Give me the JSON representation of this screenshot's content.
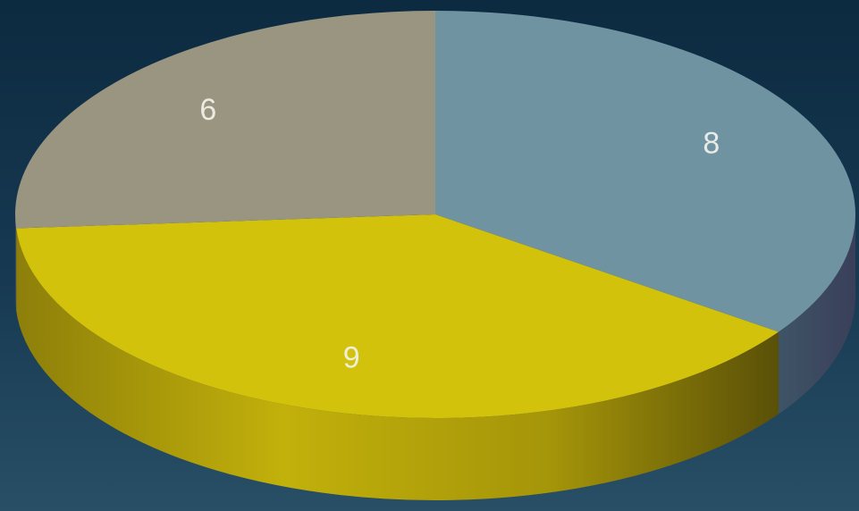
{
  "chart_data": {
    "type": "pie",
    "style": "3d",
    "title": "",
    "legend": "none",
    "slices": [
      {
        "label": "8",
        "value": 8,
        "color": "#6f93a1"
      },
      {
        "label": "9",
        "value": 9,
        "color": "#d3c20b"
      },
      {
        "label": "6",
        "value": 6,
        "color": "#9a9580"
      }
    ]
  },
  "colors": {
    "background_top": "#0c2a40",
    "background_bottom": "#284f66"
  }
}
